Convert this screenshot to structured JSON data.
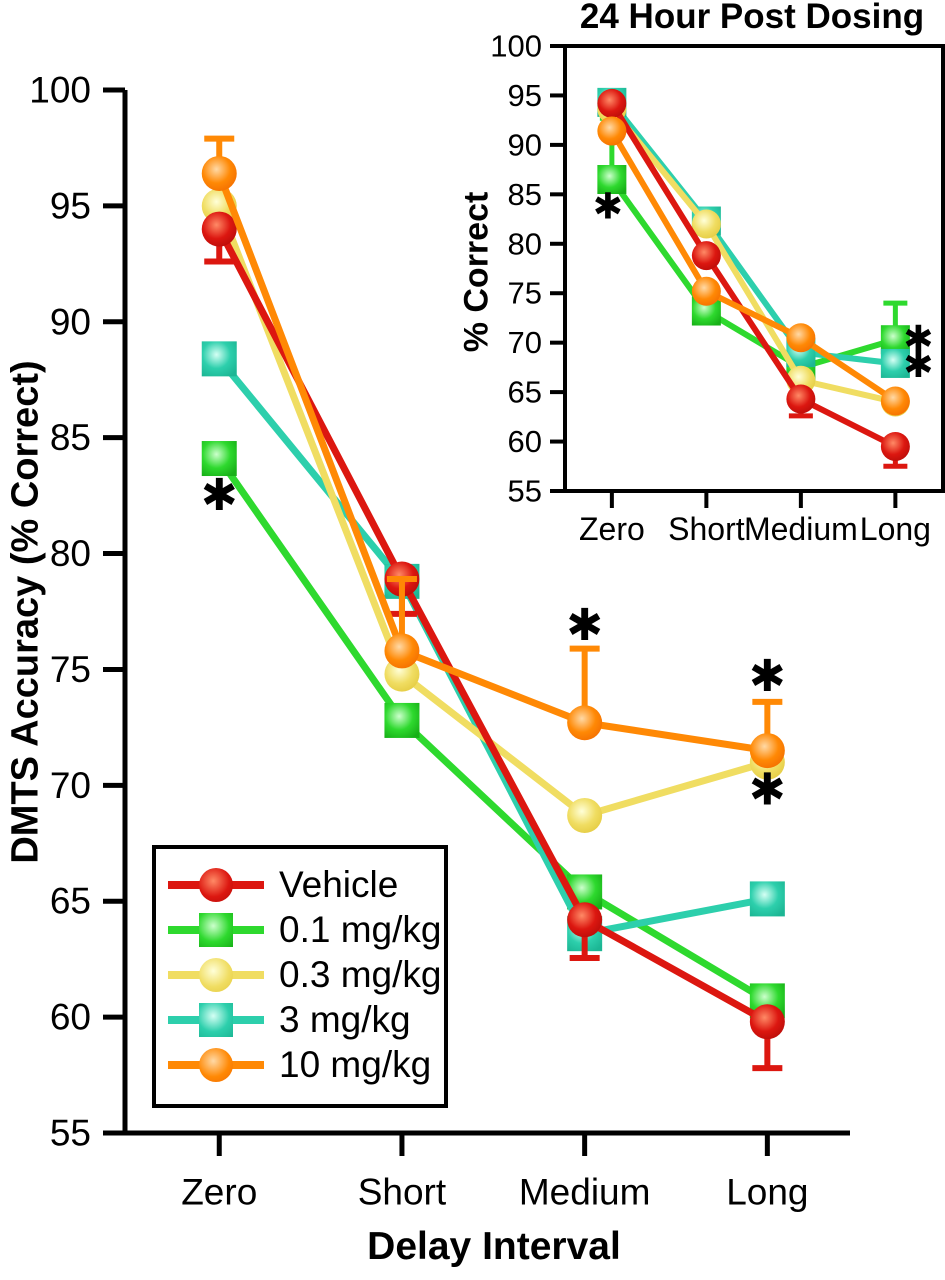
{
  "background": "#ffffff",
  "axis_color": "#000000",
  "chart_data": [
    {
      "type": "line",
      "title": "",
      "xlabel": "Delay Interval",
      "ylabel": "DMTS Accuracy (% Correct)",
      "categories": [
        "Zero",
        "Short",
        "Medium",
        "Long"
      ],
      "ylim": [
        55,
        100
      ],
      "yticks": [
        55,
        60,
        65,
        70,
        75,
        80,
        85,
        90,
        95,
        100
      ],
      "grid": false,
      "legend_position": "lower-left box",
      "draw_order": [
        1,
        3,
        2,
        0,
        4
      ],
      "series": [
        {
          "name": "Vehicle",
          "shape": "circle",
          "color": "#dc1710",
          "color_light": "#ff8a66",
          "color_dark": "#b50b08",
          "values": [
            94.0,
            78.9,
            64.2,
            59.8
          ],
          "err_down": [
            1.4,
            1.5,
            1.65,
            2.0
          ],
          "err_up": null
        },
        {
          "name": "0.1 mg/kg",
          "shape": "square",
          "color": "#2ed92e",
          "color_light": "#ccffcc",
          "color_dark": "#17b017",
          "values": [
            84.1,
            72.8,
            65.4,
            60.7
          ],
          "err_down": null,
          "err_up": null
        },
        {
          "name": "0.3 mg/kg",
          "shape": "circle",
          "color": "#f0dd62",
          "color_light": "#ffffd8",
          "color_dark": "#e3c93e",
          "values": [
            95.0,
            74.8,
            68.7,
            71.0
          ],
          "err_down": null,
          "err_up": null
        },
        {
          "name": "3 mg/kg",
          "shape": "square",
          "color": "#2dcfac",
          "color_light": "#d5fff4",
          "color_dark": "#1cb694",
          "values": [
            88.4,
            78.8,
            63.6,
            65.1
          ],
          "err_down": null,
          "err_up": null
        },
        {
          "name": "10 mg/kg",
          "shape": "circle",
          "color": "#ff8905",
          "color_light": "#ffd9a6",
          "color_dark": "#f26b00",
          "values": [
            96.4,
            75.8,
            72.7,
            71.5
          ],
          "err_down": null,
          "err_up": [
            1.5,
            3.1,
            3.2,
            2.1
          ]
        }
      ],
      "annotations": [
        {
          "glyph": "✱",
          "cat": 0,
          "y": 82.5,
          "dx": 0,
          "color": "#2ed92e"
        },
        {
          "glyph": "✱",
          "cat": 2,
          "y": 76.9,
          "dx": 0,
          "color": "#ff8905"
        },
        {
          "glyph": "✱",
          "cat": 3,
          "y": 74.7,
          "dx": 0,
          "color": "#ff8905"
        },
        {
          "glyph": "✱",
          "cat": 3,
          "y": 69.8,
          "dx": 0,
          "color": "#f0dd62"
        }
      ]
    },
    {
      "type": "line",
      "title": "24 Hour Post Dosing",
      "xlabel": "",
      "ylabel": "% Correct",
      "categories": [
        "Zero",
        "Short",
        "Medium",
        "Long"
      ],
      "ylim": [
        55,
        100
      ],
      "yticks": [
        55,
        60,
        65,
        70,
        75,
        80,
        85,
        90,
        95,
        100
      ],
      "grid": false,
      "legend_position": "none",
      "draw_order": [
        1,
        3,
        2,
        0,
        4
      ],
      "series": [
        {
          "name": "Vehicle",
          "shape": "circle",
          "color": "#dc1710",
          "color_light": "#ff8a66",
          "color_dark": "#b50b08",
          "values": [
            94.2,
            78.8,
            64.3,
            59.5
          ],
          "err_down": [
            null,
            null,
            1.7,
            2.0
          ],
          "err_up": null
        },
        {
          "name": "0.1 mg/kg",
          "shape": "square",
          "color": "#2ed92e",
          "color_light": "#ccffcc",
          "color_dark": "#17b017",
          "values": [
            86.5,
            73.2,
            67.5,
            70.3
          ],
          "err_down": null,
          "err_up": [
            6.2,
            null,
            null,
            3.7
          ]
        },
        {
          "name": "0.3 mg/kg",
          "shape": "circle",
          "color": "#f0dd62",
          "color_light": "#ffffd8",
          "color_dark": "#e3c93e",
          "values": [
            93.6,
            82.0,
            66.2,
            64.0
          ],
          "err_down": null,
          "err_up": null
        },
        {
          "name": "3 mg/kg",
          "shape": "square",
          "color": "#2dcfac",
          "color_light": "#d5fff4",
          "color_dark": "#1cb694",
          "values": [
            94.3,
            82.3,
            69.0,
            67.9
          ],
          "err_down": null,
          "err_up": null
        },
        {
          "name": "10 mg/kg",
          "shape": "circle",
          "color": "#ff8905",
          "color_light": "#ffd9a6",
          "color_dark": "#f26b00",
          "values": [
            91.4,
            75.2,
            70.5,
            64.1
          ],
          "err_down": null,
          "err_up": null
        }
      ],
      "annotations": [
        {
          "glyph": "✱",
          "cat": 0,
          "y": 83.8,
          "dx": -4,
          "color": "#2ed92e"
        },
        {
          "glyph": "✱",
          "cat": 3,
          "y": 70.4,
          "dx": 23,
          "color": "#2ed92e"
        },
        {
          "glyph": "✱",
          "cat": 3,
          "y": 67.8,
          "dx": 23,
          "color": "#3dcdfb"
        }
      ]
    }
  ],
  "legend": {
    "items": [
      {
        "label": "Vehicle",
        "series": 0
      },
      {
        "label": "0.1 mg/kg",
        "series": 1
      },
      {
        "label": "0.3 mg/kg",
        "series": 2
      },
      {
        "label": "3 mg/kg",
        "series": 3
      },
      {
        "label": "10 mg/kg",
        "series": 4
      }
    ]
  }
}
